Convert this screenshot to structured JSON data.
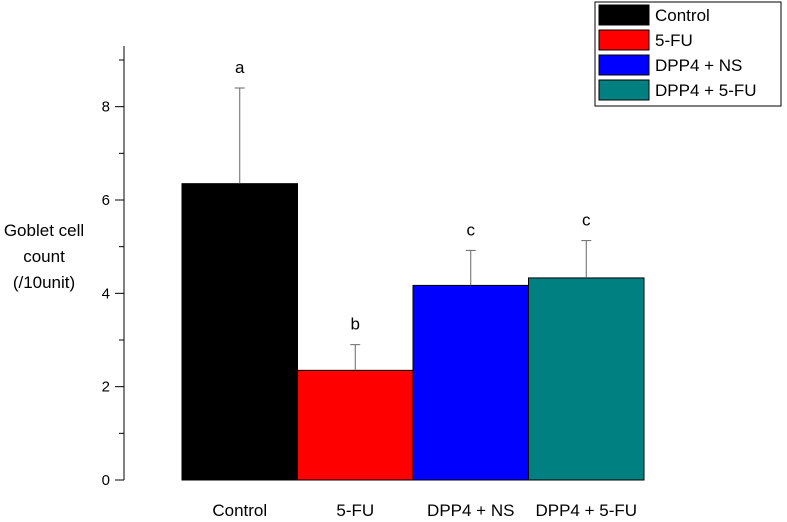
{
  "chart_data": {
    "type": "bar",
    "categories": [
      "Control",
      "5-FU",
      "DPP4 + NS",
      "DPP4 + 5-FU"
    ],
    "values": [
      6.35,
      2.35,
      4.17,
      4.33
    ],
    "errors": [
      2.05,
      0.55,
      0.75,
      0.8
    ],
    "significance_letters": [
      "a",
      "b",
      "c",
      "c"
    ],
    "colors": [
      "#000000",
      "#ff0000",
      "#0000ff",
      "#008080"
    ],
    "ylabel_lines": [
      "Goblet cell",
      "count",
      "(/10unit)"
    ],
    "title": "",
    "xlabel": "",
    "ylim": [
      0,
      9.3
    ],
    "yticks": [
      0,
      2,
      4,
      6,
      8
    ],
    "legend": {
      "placement": "top-right",
      "entries": [
        "Control",
        "5-FU",
        "DPP4 + NS",
        "DPP4 + 5-FU"
      ]
    },
    "grid": false
  }
}
